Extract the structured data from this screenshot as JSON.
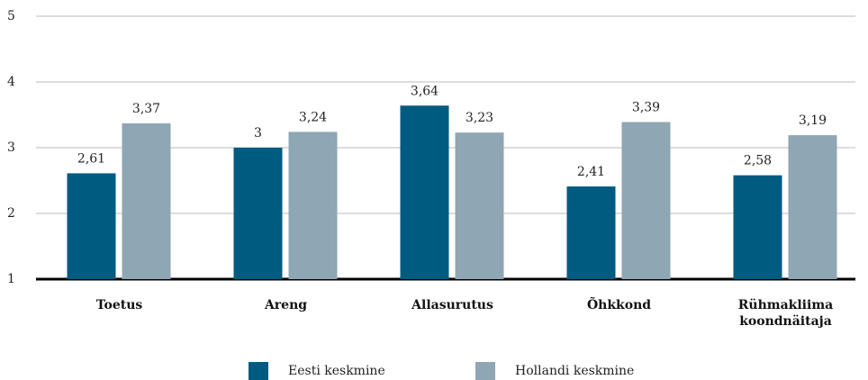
{
  "chart_data": {
    "type": "bar",
    "categories": [
      "Toetus",
      "Areng",
      "Allasurutus",
      "Õhkkond",
      "Rühmakliima koondnäitaja"
    ],
    "series": [
      {
        "name": "Eesti keskmine",
        "color": "#005b80",
        "values": [
          2.61,
          3,
          3.64,
          2.41,
          2.58
        ],
        "value_labels": [
          "2,61",
          "3",
          "3,64",
          "2,41",
          "2,58"
        ]
      },
      {
        "name": "Hollandi keskmine",
        "color": "#8fa6b4",
        "values": [
          3.37,
          3.24,
          3.23,
          3.39,
          3.19
        ],
        "value_labels": [
          "3,37",
          "3,24",
          "3,23",
          "3,39",
          "3,19"
        ]
      }
    ],
    "ylim": [
      1,
      5
    ],
    "yticks": [
      1,
      2,
      3,
      4,
      5
    ],
    "grid": true,
    "legend": "bottom"
  }
}
